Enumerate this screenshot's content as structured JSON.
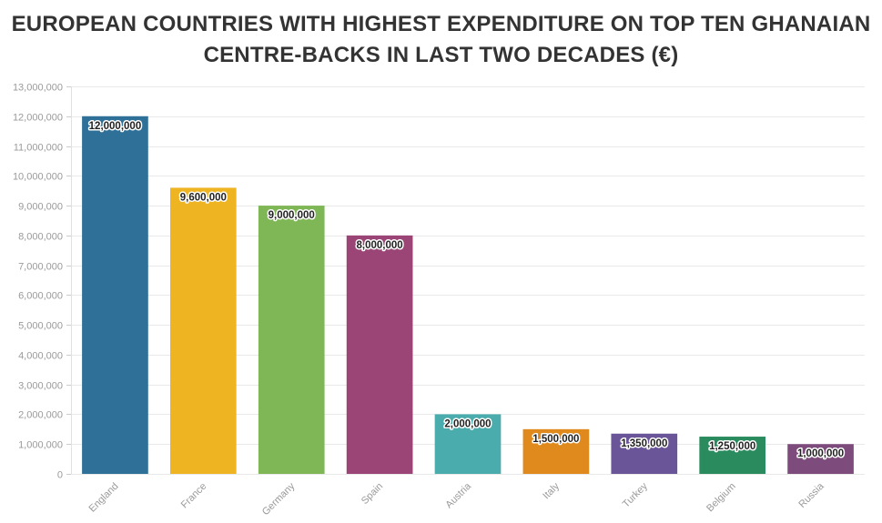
{
  "chart_data": {
    "type": "bar",
    "title": "EUROPEAN COUNTRIES WITH HIGHEST EXPENDITURE ON TOP TEN GHANAIAN CENTRE-BACKS IN LAST TWO DECADES (€)",
    "title_lines": [
      "EUROPEAN COUNTRIES WITH HIGHEST EXPENDITURE ON TOP TEN GHANAIAN",
      "CENTRE-BACKS IN LAST TWO DECADES (€)"
    ],
    "xlabel": "",
    "ylabel": "",
    "ylim": [
      0,
      13000000
    ],
    "yticks": [
      "0",
      "1,000,000",
      "2,000,000",
      "3,000,000",
      "4,000,000",
      "5,000,000",
      "6,000,000",
      "7,000,000",
      "8,000,000",
      "9,000,000",
      "10,000,000",
      "11,000,000",
      "12,000,000",
      "13,000,000"
    ],
    "ytick_values": [
      0,
      1000000,
      2000000,
      3000000,
      4000000,
      5000000,
      6000000,
      7000000,
      8000000,
      9000000,
      10000000,
      11000000,
      12000000,
      13000000
    ],
    "grid": true,
    "categories": [
      "England",
      "France",
      "Germany",
      "Spain",
      "Austria",
      "Italy",
      "Turkey",
      "Belgium",
      "Russia"
    ],
    "values": [
      12000000,
      9600000,
      9000000,
      8000000,
      2000000,
      1500000,
      1350000,
      1250000,
      1000000
    ],
    "value_labels": [
      "12,000,000",
      "9,600,000",
      "9,000,000",
      "8,000,000",
      "2,000,000",
      "1,500,000",
      "1,350,000",
      "1,250,000",
      "1,000,000"
    ],
    "colors": [
      "#2e7097",
      "#eeb422",
      "#7fb656",
      "#9b4577",
      "#4aacac",
      "#e08a1e",
      "#6a5598",
      "#2a8c5e",
      "#7d4c7d"
    ]
  }
}
